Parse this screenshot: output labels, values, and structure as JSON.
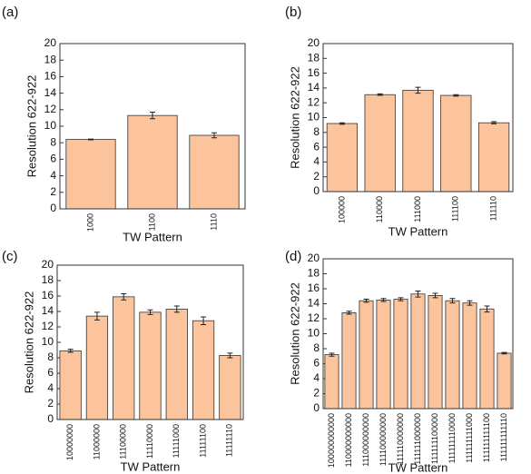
{
  "chart_data": [
    {
      "type": "bar",
      "panel": "(a)",
      "ylabel": "Resolution 622-922",
      "xlabel": "TW Pattern",
      "categories": [
        "1000",
        "1100",
        "1110"
      ],
      "values": [
        8.4,
        11.3,
        8.9
      ],
      "errors": [
        0.05,
        0.4,
        0.3
      ],
      "color": "#fbc49c",
      "ylim": [
        0,
        20
      ],
      "yticks": [
        0,
        2,
        4,
        6,
        8,
        10,
        12,
        14,
        16,
        18,
        20
      ]
    },
    {
      "type": "bar",
      "panel": "(b)",
      "ylabel": "Resolution 622-922",
      "xlabel": "TW Pattern",
      "categories": [
        "100000",
        "110000",
        "111000",
        "111100",
        "111110"
      ],
      "values": [
        9.2,
        13.1,
        13.7,
        13.0,
        9.3
      ],
      "errors": [
        0.1,
        0.1,
        0.4,
        0.1,
        0.15
      ],
      "color": "#fbc49c",
      "ylim": [
        0,
        20
      ],
      "yticks": [
        0,
        2,
        4,
        6,
        8,
        10,
        12,
        14,
        16,
        18,
        20
      ]
    },
    {
      "type": "bar",
      "panel": "(c)",
      "ylabel": "Resolution 622-922",
      "xlabel": "TW Pattern",
      "categories": [
        "10000000",
        "11000000",
        "11100000",
        "11110000",
        "11111000",
        "11111100",
        "11111110"
      ],
      "values": [
        8.9,
        13.4,
        15.9,
        13.9,
        14.3,
        12.8,
        8.3
      ],
      "errors": [
        0.2,
        0.5,
        0.4,
        0.3,
        0.4,
        0.5,
        0.3
      ],
      "color": "#fbc49c",
      "ylim": [
        0,
        20
      ],
      "yticks": [
        0,
        2,
        4,
        6,
        8,
        10,
        12,
        14,
        16,
        18,
        20
      ]
    },
    {
      "type": "bar",
      "panel": "(d)",
      "ylabel": "Resolution 622-922",
      "xlabel": "TW Pattern",
      "categories": [
        "100000000000",
        "110000000000",
        "111000000000",
        "111100000000",
        "111110000000",
        "111111000000",
        "111111100000",
        "111111110000",
        "111111111000",
        "111111111100",
        "111111111110"
      ],
      "values": [
        7.2,
        12.8,
        14.4,
        14.5,
        14.6,
        15.3,
        15.1,
        14.4,
        14.1,
        13.3,
        7.4
      ],
      "errors": [
        0.2,
        0.2,
        0.2,
        0.2,
        0.2,
        0.4,
        0.3,
        0.3,
        0.3,
        0.4,
        0.1
      ],
      "color": "#fbc49c",
      "ylim": [
        0,
        20
      ],
      "yticks": [
        0,
        2,
        4,
        6,
        8,
        10,
        12,
        14,
        16,
        18,
        20
      ]
    }
  ]
}
